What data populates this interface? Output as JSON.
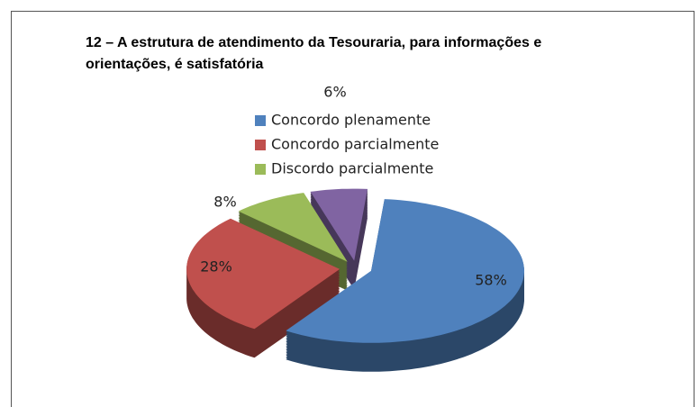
{
  "chart_data": {
    "type": "pie",
    "title": "12 – A estrutura de atendimento da Tesouraria, para informações e orientações, é satisfatória",
    "categories": [
      "Concordo plenamente",
      "Concordo parcialmente",
      "Discordo parcialmente",
      null
    ],
    "values": [
      58,
      28,
      8,
      6
    ],
    "value_labels": [
      "58%",
      "28%",
      "8%",
      "6%"
    ],
    "colors": [
      "#4f81bd",
      "#c0504d",
      "#9bbb59",
      "#8064a2"
    ],
    "legend": "top"
  }
}
